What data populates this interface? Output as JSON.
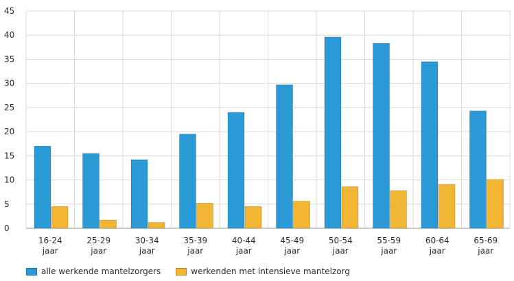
{
  "chart_data": {
    "type": "bar",
    "categories": [
      [
        "16-24",
        "jaar"
      ],
      [
        "25-29",
        "jaar"
      ],
      [
        "30-34",
        "jaar"
      ],
      [
        "35-39",
        "jaar"
      ],
      [
        "40-44",
        "jaar"
      ],
      [
        "45-49",
        "jaar"
      ],
      [
        "50-54",
        "jaar"
      ],
      [
        "55-59",
        "jaar"
      ],
      [
        "60-64",
        "jaar"
      ],
      [
        "65-69",
        "jaar"
      ]
    ],
    "series": [
      {
        "name": "alle werkende mantelzorgers",
        "color": "#2a9ad6",
        "values": [
          17,
          15.5,
          14.2,
          19.5,
          24,
          29.7,
          39.6,
          38.3,
          34.5,
          24.3
        ]
      },
      {
        "name": "werkenden met intensieve mantelzorg",
        "color": "#f2b634",
        "values": [
          4.5,
          1.7,
          1.2,
          5.2,
          4.5,
          5.6,
          8.6,
          7.8,
          9.1,
          10.1
        ]
      }
    ],
    "ylim": [
      0,
      45
    ],
    "yticks": [
      0,
      5,
      10,
      15,
      20,
      25,
      30,
      35,
      40,
      45
    ],
    "grid": true,
    "legend_position": "bottom-left"
  }
}
